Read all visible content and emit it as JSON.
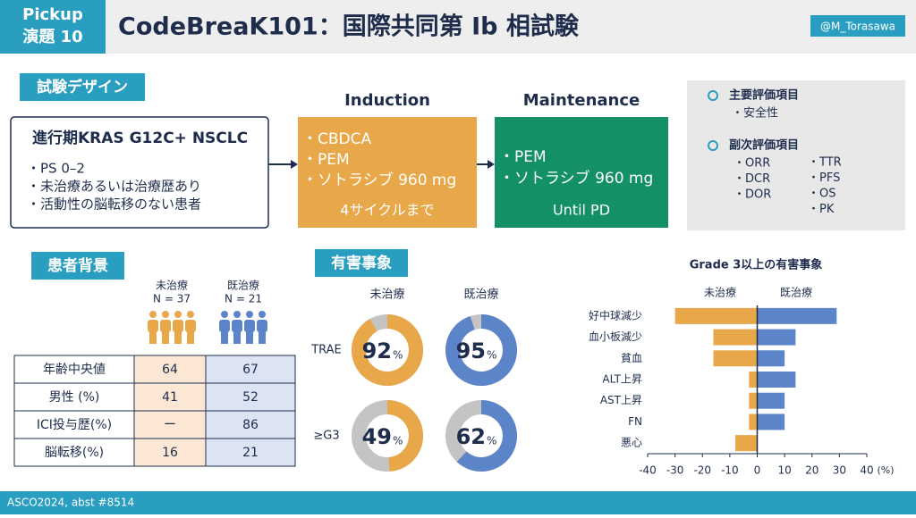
{
  "header": {
    "pickup": "Pickup",
    "number": "演題 10",
    "title": "CodeBreaK101：国際共同第 Ib 相試験",
    "handle": "@M_Torasawa"
  },
  "design": {
    "label": "試験デザイン",
    "population": {
      "title": "進行期KRAS G12C+ NSCLC",
      "items": [
        "・PS 0–2",
        "・未治療あるいは治療歴あり",
        "・活動性の脳転移のない患者"
      ]
    },
    "induction": {
      "heading": "Induction",
      "items": [
        "・CBDCA",
        "・PEM",
        "・ソトラシブ 960 mg"
      ],
      "duration": "4サイクルまで"
    },
    "maintenance": {
      "heading": "Maintenance",
      "items": [
        "・PEM",
        "・ソトラシブ 960 mg"
      ],
      "duration": "Until PD"
    },
    "endpoints": {
      "primary": {
        "heading": "主要評価項目",
        "items": [
          "・安全性"
        ]
      },
      "secondary": {
        "heading": "副次評価項目",
        "items": [
          "・ORR",
          "・DCR",
          "・DOR",
          "・TTR",
          "・PFS",
          "・OS",
          "・PK"
        ]
      }
    }
  },
  "background": {
    "label": "患者背景",
    "groups": [
      {
        "name": "未治療",
        "n": "N = 37"
      },
      {
        "name": "既治療",
        "n": "N = 21"
      }
    ],
    "rows": [
      [
        "年齢中央値",
        64,
        67
      ],
      [
        "男性 (%)",
        41,
        52
      ],
      [
        "ICI投与歴(%)",
        "ー",
        86
      ],
      [
        "脳転移(%)",
        16,
        21
      ]
    ]
  },
  "adverse_events": {
    "label": "有害事象",
    "groups": [
      "未治療",
      "既治療"
    ],
    "rows": [
      {
        "name": "TRAE",
        "values": [
          92,
          95
        ]
      },
      {
        "name": "≥G3",
        "values": [
          49,
          62
        ]
      }
    ],
    "unit": "%"
  },
  "chart_data": {
    "type": "bar",
    "orientation": "horizontal",
    "title": "Grade 3以上の有害事象",
    "categories": [
      "好中球減少",
      "血小板減少",
      "貧血",
      "ALT上昇",
      "AST上昇",
      "FN",
      "悪心"
    ],
    "series": [
      {
        "name": "未治療",
        "color": "#e8a84a",
        "values": [
          -30,
          -16,
          -16,
          -3,
          -3,
          -3,
          -8
        ]
      },
      {
        "name": "既治療",
        "color": "#5b85c8",
        "values": [
          29,
          14,
          10,
          14,
          10,
          10,
          0
        ]
      }
    ],
    "xlim": [
      -40,
      40
    ],
    "xticks": [
      -40,
      -30,
      -20,
      -10,
      0,
      10,
      20,
      30,
      40
    ],
    "x_unit": "(%)"
  },
  "footer": "ASCO2024, abst #8514"
}
